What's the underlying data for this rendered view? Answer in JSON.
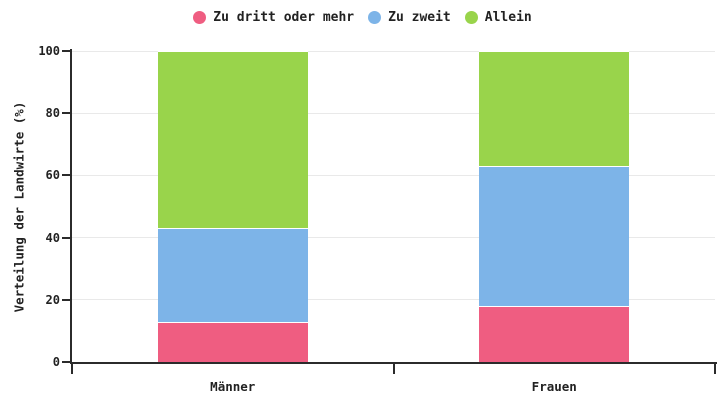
{
  "chart_data": {
    "type": "bar",
    "stacked": true,
    "orientation": "vertical",
    "categories": [
      "Männer",
      "Frauen"
    ],
    "series": [
      {
        "name": "Zu dritt oder mehr",
        "color": "#ef5d81",
        "values": [
          13,
          18
        ]
      },
      {
        "name": "Zu zweit",
        "color": "#7db4e8",
        "values": [
          30,
          45
        ]
      },
      {
        "name": "Allein",
        "color": "#99d44b",
        "values": [
          57,
          37
        ]
      }
    ],
    "title": "",
    "xlabel": "",
    "ylabel": "Verteilung der Landwirte (%)",
    "ylim": [
      0,
      100
    ],
    "yticks": [
      0,
      20,
      40,
      60,
      80,
      100
    ],
    "grid": true,
    "legend_position": "top-center"
  },
  "colors": {
    "background": "#ffffff",
    "text": "#222222",
    "axis": "#2b2b2b",
    "gridline": "#e9e9e9"
  }
}
